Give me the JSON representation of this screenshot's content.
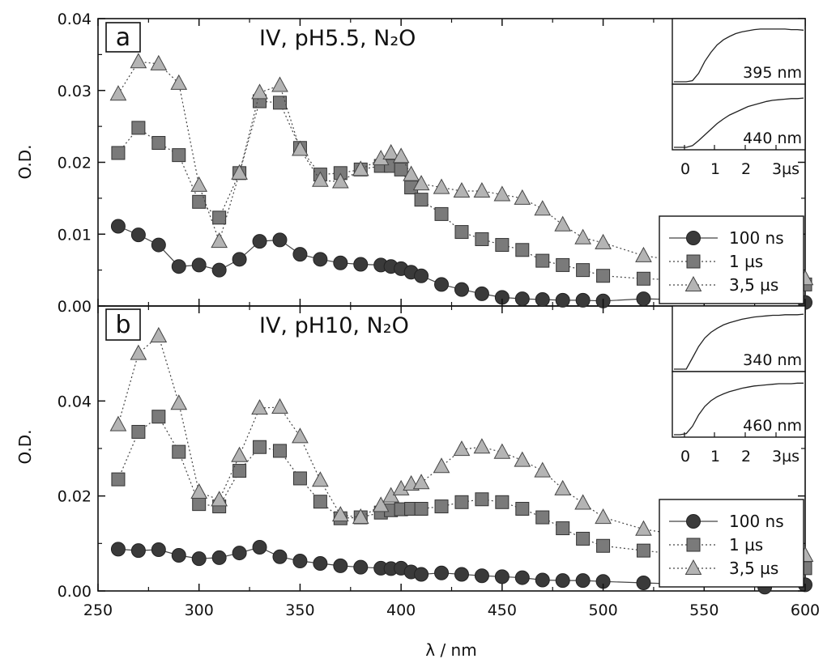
{
  "colors": {
    "s100ns": "#3a3a3a",
    "s1us": "#7a7a7a",
    "s35us": "#b4b4b4",
    "axis": "#111111"
  },
  "axes": {
    "xlabel": "λ / nm",
    "x_ticks": [
      "250",
      "300",
      "350",
      "400",
      "450",
      "500",
      "550",
      "600"
    ]
  },
  "chart_data": [
    {
      "type": "line",
      "panel": "a",
      "title": "IV, pH5.5, N₂O",
      "ylabel": "O.D.",
      "ylim": [
        0,
        0.04
      ],
      "xlim": [
        250,
        600
      ],
      "y_ticks": [
        "0.00",
        "0.01",
        "0.02",
        "0.03",
        "0.04"
      ],
      "legend_position": "right, lower",
      "series": [
        {
          "name": "100 ns",
          "marker": "circle",
          "line": "solid",
          "x": [
            260,
            270,
            280,
            290,
            300,
            310,
            320,
            330,
            340,
            350,
            360,
            370,
            380,
            390,
            395,
            400,
            405,
            410,
            420,
            430,
            440,
            450,
            460,
            470,
            480,
            490,
            500,
            520,
            600
          ],
          "y": [
            0.0111,
            0.0099,
            0.0085,
            0.0055,
            0.0057,
            0.005,
            0.0065,
            0.009,
            0.0092,
            0.0072,
            0.0065,
            0.006,
            0.0058,
            0.0057,
            0.0055,
            0.0052,
            0.0047,
            0.0042,
            0.003,
            0.0023,
            0.0017,
            0.0012,
            0.001,
            0.0009,
            0.0008,
            0.0008,
            0.0007,
            0.001,
            0.0005
          ]
        },
        {
          "name": "1 µs",
          "marker": "square",
          "line": "dotted",
          "x": [
            260,
            270,
            280,
            290,
            300,
            310,
            320,
            330,
            340,
            350,
            360,
            370,
            380,
            390,
            395,
            400,
            405,
            410,
            420,
            430,
            440,
            450,
            460,
            470,
            480,
            490,
            500,
            520,
            600
          ],
          "y": [
            0.0213,
            0.0248,
            0.0227,
            0.021,
            0.0145,
            0.0123,
            0.0185,
            0.0285,
            0.0283,
            0.022,
            0.0183,
            0.0185,
            0.019,
            0.0195,
            0.0195,
            0.019,
            0.0165,
            0.0148,
            0.0128,
            0.0103,
            0.0093,
            0.0085,
            0.0078,
            0.0063,
            0.0057,
            0.005,
            0.0042,
            0.0038,
            0.003
          ]
        },
        {
          "name": "3,5 µs",
          "marker": "triangle",
          "line": "dotted",
          "x": [
            260,
            270,
            280,
            290,
            300,
            310,
            320,
            330,
            340,
            350,
            360,
            370,
            380,
            390,
            395,
            400,
            405,
            410,
            420,
            430,
            440,
            450,
            460,
            470,
            480,
            490,
            500,
            520,
            600
          ],
          "y": [
            0.0295,
            0.034,
            0.0337,
            0.031,
            0.0168,
            0.009,
            0.0185,
            0.0297,
            0.0307,
            0.0218,
            0.0175,
            0.0173,
            0.019,
            0.0205,
            0.0213,
            0.0208,
            0.0183,
            0.017,
            0.0165,
            0.016,
            0.016,
            0.0155,
            0.015,
            0.0135,
            0.0113,
            0.0095,
            0.0088,
            0.007,
            0.0038
          ]
        }
      ],
      "inset": {
        "x_ticks": [
          "0",
          "1",
          "2",
          "3µs"
        ],
        "traces": [
          {
            "label": "395 nm",
            "values": [
              0.0,
              0.0,
              0.0,
              0.02,
              0.15,
              0.36,
              0.52,
              0.65,
              0.74,
              0.8,
              0.85,
              0.88,
              0.9,
              0.92,
              0.93,
              0.93,
              0.93,
              0.93,
              0.93,
              0.92,
              0.92,
              0.91
            ]
          },
          {
            "label": "440 nm",
            "values": [
              0.0,
              0.0,
              0.0,
              0.03,
              0.12,
              0.22,
              0.32,
              0.42,
              0.5,
              0.57,
              0.62,
              0.67,
              0.72,
              0.75,
              0.78,
              0.81,
              0.83,
              0.84,
              0.85,
              0.86,
              0.86,
              0.87
            ]
          }
        ]
      }
    },
    {
      "type": "line",
      "panel": "b",
      "title": "IV, pH10, N₂O",
      "ylabel": "O.D.",
      "ylim": [
        0,
        0.06
      ],
      "xlim": [
        250,
        600
      ],
      "y_ticks": [
        "0.00",
        "0.02",
        "0.04"
      ],
      "legend_position": "right, lower",
      "series": [
        {
          "name": "100 ns",
          "marker": "circle",
          "line": "solid",
          "x": [
            260,
            270,
            280,
            290,
            300,
            310,
            320,
            330,
            340,
            350,
            360,
            370,
            380,
            390,
            395,
            400,
            405,
            410,
            420,
            430,
            440,
            450,
            460,
            470,
            480,
            490,
            500,
            520,
            580,
            600
          ],
          "y": [
            0.0088,
            0.0085,
            0.0087,
            0.0075,
            0.0068,
            0.007,
            0.008,
            0.0092,
            0.0072,
            0.0063,
            0.0058,
            0.0053,
            0.005,
            0.0048,
            0.0047,
            0.0048,
            0.004,
            0.0035,
            0.0038,
            0.0035,
            0.0032,
            0.003,
            0.0028,
            0.0023,
            0.0022,
            0.0022,
            0.002,
            0.0017,
            0.0008,
            0.0013
          ]
        },
        {
          "name": "1 µs",
          "marker": "square",
          "line": "dotted",
          "x": [
            260,
            270,
            280,
            290,
            300,
            310,
            320,
            330,
            340,
            350,
            360,
            370,
            380,
            390,
            395,
            400,
            405,
            410,
            420,
            430,
            440,
            450,
            460,
            470,
            480,
            490,
            500,
            520,
            600
          ],
          "y": [
            0.0235,
            0.0335,
            0.0367,
            0.0293,
            0.0183,
            0.0178,
            0.0253,
            0.0303,
            0.0295,
            0.0237,
            0.0188,
            0.0153,
            0.0155,
            0.0165,
            0.017,
            0.0172,
            0.0173,
            0.0173,
            0.0178,
            0.0187,
            0.0193,
            0.0187,
            0.0173,
            0.0155,
            0.0132,
            0.011,
            0.0095,
            0.0085,
            0.0048
          ]
        },
        {
          "name": "3,5 µs",
          "marker": "triangle",
          "line": "dotted",
          "x": [
            260,
            270,
            280,
            290,
            300,
            310,
            320,
            330,
            340,
            350,
            360,
            370,
            380,
            390,
            395,
            400,
            405,
            410,
            420,
            430,
            440,
            450,
            460,
            470,
            480,
            490,
            500,
            520,
            600
          ],
          "y": [
            0.035,
            0.05,
            0.0537,
            0.0395,
            0.0208,
            0.0192,
            0.0285,
            0.0385,
            0.0387,
            0.0325,
            0.0233,
            0.016,
            0.0155,
            0.018,
            0.02,
            0.0215,
            0.0225,
            0.0228,
            0.0262,
            0.0298,
            0.0303,
            0.0292,
            0.0275,
            0.0253,
            0.0215,
            0.0185,
            0.0155,
            0.013,
            0.0075
          ]
        }
      ],
      "inset": {
        "x_ticks": [
          "0",
          "1",
          "2",
          "3µs"
        ],
        "traces": [
          {
            "label": "340 nm",
            "values": [
              0.0,
              0.0,
              0.0,
              0.2,
              0.4,
              0.55,
              0.65,
              0.72,
              0.78,
              0.82,
              0.85,
              0.88,
              0.9,
              0.92,
              0.93,
              0.94,
              0.95,
              0.95,
              0.96,
              0.96,
              0.96,
              0.97
            ]
          },
          {
            "label": "460 nm",
            "values": [
              0.0,
              0.0,
              0.02,
              0.15,
              0.35,
              0.5,
              0.6,
              0.67,
              0.72,
              0.76,
              0.79,
              0.82,
              0.84,
              0.86,
              0.87,
              0.88,
              0.89,
              0.9,
              0.9,
              0.9,
              0.91,
              0.91
            ]
          }
        ]
      }
    }
  ]
}
